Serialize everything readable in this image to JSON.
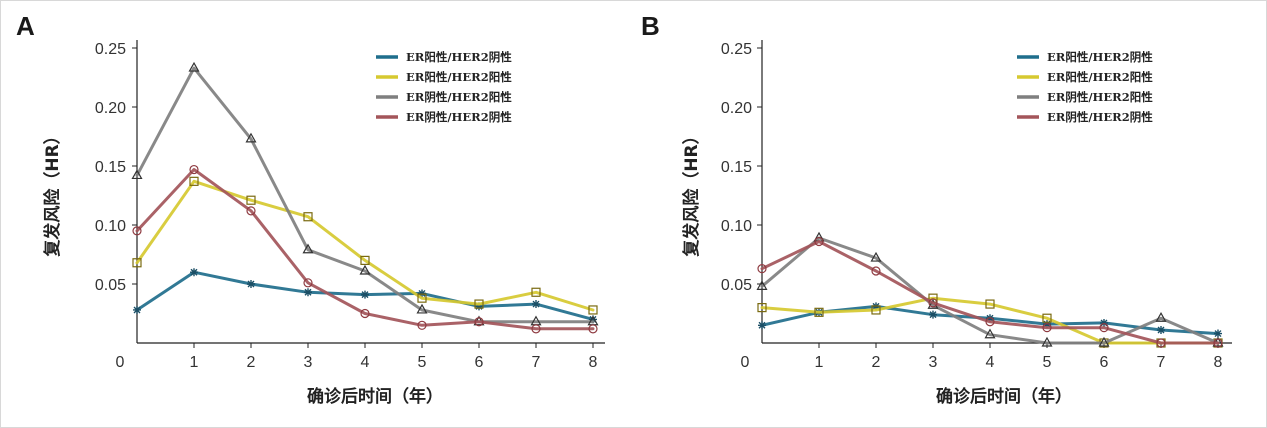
{
  "chart_data": [
    {
      "type": "line",
      "panel": "A",
      "xlabel": "确诊后时间（年）",
      "ylabel": "复发风险（HR）",
      "x": [
        0,
        1,
        2,
        3,
        4,
        5,
        6,
        7,
        8
      ],
      "xticks": [
        "0",
        "1",
        "2",
        "3",
        "4",
        "5",
        "6",
        "7",
        "8"
      ],
      "yticks": [
        "0.05",
        "0.10",
        "0.15",
        "0.20",
        "0.25"
      ],
      "ylim": [
        0,
        0.25
      ],
      "legend_position": "top-right",
      "series": [
        {
          "name": "ER阳性/HER2阴性",
          "color": "#1f6e8c",
          "marker": "star",
          "values": [
            0.028,
            0.06,
            0.05,
            0.043,
            0.041,
            0.042,
            0.031,
            0.033,
            0.02
          ]
        },
        {
          "name": "ER阳性/HER2阳性",
          "color": "#d6c930",
          "marker": "square",
          "values": [
            0.068,
            0.137,
            0.121,
            0.107,
            0.07,
            0.038,
            0.033,
            0.043,
            0.028
          ]
        },
        {
          "name": "ER阴性/HER2阳性",
          "color": "#7f7f7f",
          "marker": "triangle",
          "values": [
            0.142,
            0.233,
            0.173,
            0.079,
            0.061,
            0.028,
            0.018,
            0.018,
            0.018
          ]
        },
        {
          "name": "ER阴性/HER2阴性",
          "color": "#a3555a",
          "marker": "circle",
          "values": [
            0.095,
            0.147,
            0.112,
            0.051,
            0.025,
            0.015,
            0.018,
            0.012,
            0.012
          ]
        }
      ]
    },
    {
      "type": "line",
      "panel": "B",
      "xlabel": "确诊后时间（年）",
      "ylabel": "复发风险（HR）",
      "x": [
        0,
        1,
        2,
        3,
        4,
        5,
        6,
        7,
        8
      ],
      "xticks": [
        "0",
        "1",
        "2",
        "3",
        "4",
        "5",
        "6",
        "7",
        "8"
      ],
      "yticks": [
        "0.05",
        "0.10",
        "0.15",
        "0.20",
        "0.25"
      ],
      "ylim": [
        0,
        0.25
      ],
      "legend_position": "top-right",
      "series": [
        {
          "name": "ER阳性/HER2阴性",
          "color": "#1f6e8c",
          "marker": "star",
          "values": [
            0.015,
            0.026,
            0.031,
            0.024,
            0.021,
            0.016,
            0.017,
            0.011,
            0.008
          ]
        },
        {
          "name": "ER阳性/HER2阳性",
          "color": "#d6c930",
          "marker": "square",
          "values": [
            0.03,
            0.026,
            0.028,
            0.038,
            0.033,
            0.021,
            0.0,
            0.0,
            0.0
          ]
        },
        {
          "name": "ER阴性/HER2阳性",
          "color": "#7f7f7f",
          "marker": "triangle",
          "values": [
            0.048,
            0.089,
            0.072,
            0.032,
            0.007,
            0.0,
            0.0,
            0.021,
            0.0
          ]
        },
        {
          "name": "ER阴性/HER2阴性",
          "color": "#a3555a",
          "marker": "circle",
          "values": [
            0.063,
            0.086,
            0.061,
            0.034,
            0.018,
            0.013,
            0.013,
            0.0,
            0.0
          ]
        }
      ]
    }
  ]
}
